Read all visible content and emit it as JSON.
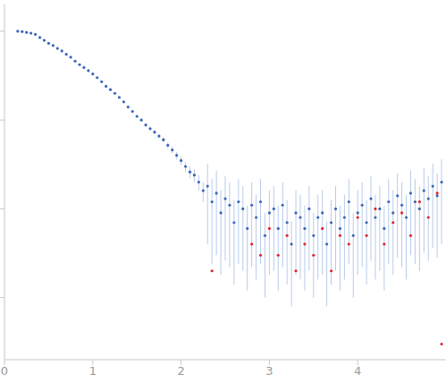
{
  "chart_data": {
    "type": "scatter",
    "log": "y",
    "tick_labels": "x",
    "grid": false,
    "marker": "circle",
    "xlim": [
      0,
      5
    ],
    "xticks": [
      0,
      1,
      2,
      3,
      4
    ],
    "ylim": [
      0.0002,
      2
    ],
    "yticks": [
      0.001,
      0.01,
      0.1,
      1
    ],
    "series": [
      {
        "color": "#3a66b8",
        "x": [
          0.15,
          0.2,
          0.25,
          0.3,
          0.35,
          0.4,
          0.45,
          0.5,
          0.55,
          0.6,
          0.65,
          0.7,
          0.75,
          0.8,
          0.85,
          0.9,
          0.95,
          1.0,
          1.05,
          1.1,
          1.15,
          1.2,
          1.25,
          1.3,
          1.35,
          1.4,
          1.45,
          1.5,
          1.55,
          1.6,
          1.65,
          1.7,
          1.75,
          1.8,
          1.85,
          1.9,
          1.95,
          2.0,
          2.05,
          2.1,
          2.15,
          2.2,
          2.25,
          2.3,
          2.35,
          2.4,
          2.45,
          2.5,
          2.55,
          2.6,
          2.65,
          2.7,
          2.75,
          2.8,
          2.85,
          2.9,
          2.95,
          3.0,
          3.05,
          3.1,
          3.15,
          3.2,
          3.25,
          3.3,
          3.35,
          3.4,
          3.45,
          3.5,
          3.55,
          3.6,
          3.65,
          3.7,
          3.75,
          3.8,
          3.85,
          3.9,
          3.95,
          4.0,
          4.05,
          4.1,
          4.15,
          4.2,
          4.25,
          4.3,
          4.35,
          4.4,
          4.45,
          4.5,
          4.55,
          4.6,
          4.65,
          4.7,
          4.75,
          4.8,
          4.85,
          4.9,
          4.95
        ],
        "values": [
          1.0,
          0.99,
          0.97,
          0.95,
          0.92,
          0.85,
          0.79,
          0.73,
          0.69,
          0.64,
          0.6,
          0.55,
          0.51,
          0.46,
          0.42,
          0.39,
          0.36,
          0.33,
          0.3,
          0.27,
          0.24,
          0.22,
          0.2,
          0.18,
          0.16,
          0.14,
          0.125,
          0.11,
          0.1,
          0.088,
          0.08,
          0.073,
          0.066,
          0.06,
          0.052,
          0.046,
          0.04,
          0.035,
          0.03,
          0.026,
          0.024,
          0.02,
          0.016,
          0.018,
          0.012,
          0.015,
          0.009,
          0.013,
          0.011,
          0.007,
          0.012,
          0.01,
          0.006,
          0.011,
          0.008,
          0.012,
          0.005,
          0.009,
          0.01,
          0.006,
          0.011,
          0.007,
          0.004,
          0.009,
          0.008,
          0.006,
          0.01,
          0.005,
          0.008,
          0.009,
          0.004,
          0.007,
          0.01,
          0.006,
          0.008,
          0.012,
          0.005,
          0.009,
          0.011,
          0.007,
          0.013,
          0.008,
          0.01,
          0.006,
          0.012,
          0.009,
          0.014,
          0.011,
          0.008,
          0.015,
          0.012,
          0.01,
          0.016,
          0.013,
          0.018,
          0.014,
          0.02
        ],
        "error": [
          0.01,
          0.01,
          0.01,
          0.01,
          0.01,
          0.01,
          0.01,
          0.01,
          0.01,
          0.01,
          0.01,
          0.008,
          0.008,
          0.007,
          0.007,
          0.006,
          0.006,
          0.006,
          0.005,
          0.005,
          0.005,
          0.004,
          0.004,
          0.004,
          0.004,
          0.003,
          0.003,
          0.004,
          0.004,
          0.004,
          0.004,
          0.004,
          0.004,
          0.004,
          0.004,
          0.004,
          0.004,
          0.004,
          0.004,
          0.004,
          0.004,
          0.004,
          0.004,
          0.014,
          0.0096,
          0.012,
          0.0072,
          0.0104,
          0.0088,
          0.0056,
          0.0096,
          0.008,
          0.0048,
          0.0088,
          0.0064,
          0.0096,
          0.004,
          0.0072,
          0.008,
          0.0048,
          0.0088,
          0.0056,
          0.0032,
          0.0072,
          0.0064,
          0.0048,
          0.008,
          0.004,
          0.0064,
          0.0072,
          0.0032,
          0.0056,
          0.008,
          0.0048,
          0.0064,
          0.0096,
          0.004,
          0.0072,
          0.0088,
          0.0056,
          0.0104,
          0.0064,
          0.008,
          0.0048,
          0.0096,
          0.0072,
          0.0112,
          0.0088,
          0.0064,
          0.012,
          0.0096,
          0.008,
          0.0128,
          0.0104,
          0.0144,
          0.0112,
          0.016
        ]
      },
      {
        "color": "#e0242a",
        "x": [
          2.35,
          2.8,
          2.9,
          3.0,
          3.1,
          3.2,
          3.3,
          3.4,
          3.5,
          3.6,
          3.7,
          3.8,
          3.9,
          4.0,
          4.1,
          4.2,
          4.3,
          4.4,
          4.5,
          4.6,
          4.7,
          4.8,
          4.9,
          4.95
        ],
        "values": [
          0.002,
          0.004,
          0.003,
          0.006,
          0.003,
          0.005,
          0.002,
          0.004,
          0.003,
          0.006,
          0.002,
          0.005,
          0.004,
          0.008,
          0.005,
          0.01,
          0.004,
          0.007,
          0.009,
          0.005,
          0.012,
          0.008,
          0.015,
          0.0003
        ]
      }
    ]
  }
}
